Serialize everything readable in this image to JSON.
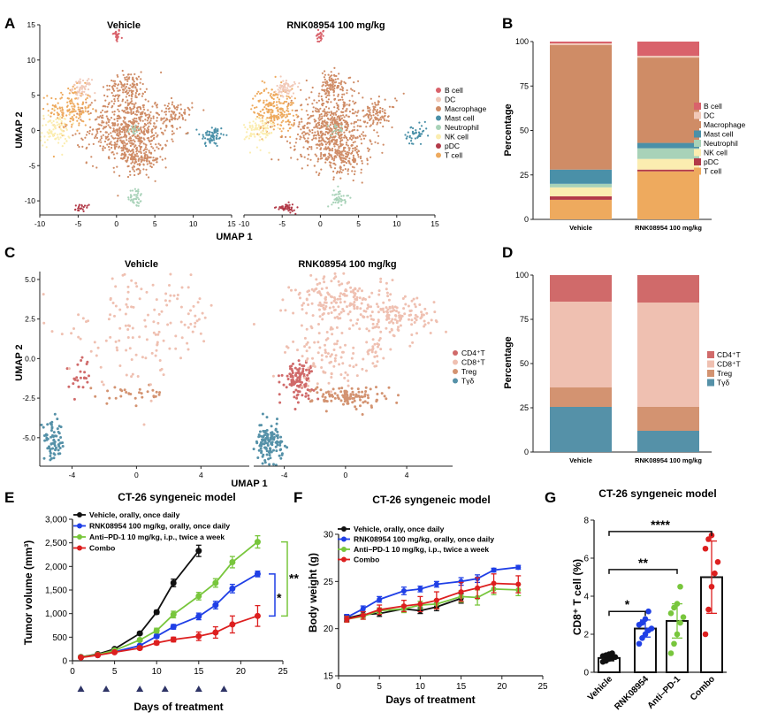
{
  "colors": {
    "b_cell": "#d9626b",
    "dc": "#f1c9b8",
    "macrophage": "#cf8c66",
    "mast": "#4a90a8",
    "neutrophil": "#a8d2b8",
    "nk": "#fbedb0",
    "pdc": "#b23a48",
    "tcell": "#eeaa5e",
    "cd4": "#d06a6a",
    "cd8": "#efc0b1",
    "treg": "#d39371",
    "tgd": "#5591a8",
    "black": "#111111",
    "blue": "#1f3fe6",
    "green": "#78c63c",
    "red": "#dd1f1f"
  },
  "panel_letters": {
    "A": "A",
    "B": "B",
    "C": "C",
    "D": "D",
    "E": "E",
    "F": "F",
    "G": "G"
  },
  "chart_data": [
    {
      "id": "A",
      "type": "scatter",
      "facets": [
        "Vehicle",
        "RNK08954 100 mg/kg"
      ],
      "xlabel": "UMAP 1",
      "ylabel": "UMAP 2",
      "xticks": [
        -10,
        -5,
        0,
        5,
        10,
        15
      ],
      "yticks": [
        15,
        10,
        5,
        0,
        -5,
        -10
      ],
      "xlim": [
        -10,
        15
      ],
      "ylim": [
        -12,
        15
      ],
      "legend": [
        "B cell",
        "DC",
        "Macrophage",
        "Mast cell",
        "Neutrophil",
        "NK cell",
        "pDC",
        "T cell"
      ],
      "legend_position": "right"
    },
    {
      "id": "B",
      "type": "bar",
      "stacked": true,
      "categories": [
        "Vehicle",
        "RNK08954 100 mg/kg"
      ],
      "ylabel": "Percentage",
      "xlabel": "",
      "ylim": [
        0,
        100
      ],
      "yticks": [
        0,
        25,
        50,
        75,
        100
      ],
      "series": [
        {
          "name": "T cell",
          "values": [
            11,
            27
          ]
        },
        {
          "name": "pDC",
          "values": [
            2,
            1
          ]
        },
        {
          "name": "NK cell",
          "values": [
            5,
            6
          ]
        },
        {
          "name": "Neutrophil",
          "values": [
            2,
            6
          ]
        },
        {
          "name": "Mast cell",
          "values": [
            8,
            3
          ]
        },
        {
          "name": "Macrophage",
          "values": [
            70,
            48
          ]
        },
        {
          "name": "DC",
          "values": [
            1,
            1
          ]
        },
        {
          "name": "B cell",
          "values": [
            1,
            8
          ]
        }
      ],
      "legend_position": "right"
    },
    {
      "id": "C",
      "type": "scatter",
      "facets": [
        "Vehicle",
        "RNK08954 100 mg/kg"
      ],
      "xlabel": "UMAP 1",
      "ylabel": "UMAP 2",
      "xticks": [
        -4,
        0,
        4
      ],
      "yticks": [
        5.0,
        2.5,
        0.0,
        -2.5,
        -5.0
      ],
      "xlim": [
        -6,
        7
      ],
      "ylim": [
        -6.8,
        5.5
      ],
      "legend": [
        "CD4⁺T",
        "CD8⁺T",
        "Treg",
        "Tγδ"
      ],
      "legend_position": "right"
    },
    {
      "id": "D",
      "type": "bar",
      "stacked": true,
      "categories": [
        "Vehicle",
        "RNK08954 100 mg/kg"
      ],
      "ylabel": "Percentage",
      "xlabel": "",
      "ylim": [
        0,
        100
      ],
      "yticks": [
        0,
        25,
        50,
        75,
        100
      ],
      "series": [
        {
          "name": "Tγδ",
          "values": [
            25.5,
            12
          ]
        },
        {
          "name": "Treg",
          "values": [
            11,
            13.5
          ]
        },
        {
          "name": "CD8⁺T",
          "values": [
            48.5,
            59
          ]
        },
        {
          "name": "CD4⁺T",
          "values": [
            15,
            15.5
          ]
        }
      ],
      "legend_position": "right"
    },
    {
      "id": "E",
      "type": "line",
      "title": "CT-26 syngeneic model",
      "xlabel": "Days of treatment",
      "ylabel": "Tumor volume (mm³)",
      "xlim": [
        0,
        25
      ],
      "ylim": [
        0,
        3000
      ],
      "xticks": [
        0,
        5,
        10,
        15,
        20,
        25
      ],
      "yticks": [
        0,
        500,
        1000,
        1500,
        2000,
        2500,
        3000
      ],
      "ytick_labels": [
        "0",
        "500",
        "1,000",
        "1,500",
        "2,000",
        "2,500",
        "3,000"
      ],
      "dosing_days": [
        1,
        4,
        8,
        11,
        15,
        18
      ],
      "series": [
        {
          "name": "Vehicle, orally, once daily",
          "x": [
            1,
            3,
            5,
            8,
            10,
            12,
            15
          ],
          "y": [
            80,
            140,
            250,
            580,
            1030,
            1650,
            2330
          ],
          "err": [
            10,
            15,
            20,
            30,
            40,
            80,
            120
          ]
        },
        {
          "name": "RNK08954 100 mg/kg, orally, once daily",
          "x": [
            1,
            3,
            5,
            8,
            10,
            12,
            15,
            17,
            19,
            22
          ],
          "y": [
            80,
            120,
            190,
            320,
            520,
            720,
            940,
            1180,
            1530,
            1840
          ],
          "err": [
            10,
            15,
            20,
            30,
            40,
            50,
            70,
            80,
            90,
            60
          ]
        },
        {
          "name": "Anti–PD-1 10 mg/kg, i.p., twice a week",
          "x": [
            1,
            3,
            5,
            8,
            10,
            12,
            15,
            17,
            19,
            22
          ],
          "y": [
            80,
            130,
            220,
            440,
            640,
            980,
            1370,
            1650,
            2090,
            2520
          ],
          "err": [
            10,
            15,
            20,
            30,
            50,
            70,
            80,
            90,
            120,
            130
          ]
        },
        {
          "name": "Combo",
          "x": [
            1,
            3,
            5,
            8,
            10,
            12,
            15,
            17,
            19,
            22
          ],
          "y": [
            70,
            120,
            180,
            270,
            380,
            450,
            520,
            600,
            770,
            950
          ],
          "err": [
            10,
            15,
            20,
            30,
            40,
            50,
            90,
            120,
            180,
            220
          ]
        }
      ],
      "annotations": [
        "**",
        "*"
      ]
    },
    {
      "id": "F",
      "type": "line",
      "title": "CT-26 syngeneic model",
      "xlabel": "Days of treatment",
      "ylabel": "Body weight (g)",
      "xlim": [
        0,
        25
      ],
      "ylim": [
        15,
        30
      ],
      "xticks": [
        0,
        5,
        10,
        15,
        20,
        25
      ],
      "yticks": [
        15,
        20,
        25,
        30
      ],
      "series": [
        {
          "name": "Vehicle, orally, once daily",
          "x": [
            1,
            3,
            5,
            8,
            10,
            12,
            15
          ],
          "y": [
            21.1,
            21.5,
            21.6,
            22.1,
            21.9,
            22.3,
            23.2
          ],
          "err": [
            0.3,
            0.3,
            0.3,
            0.3,
            0.3,
            0.4,
            0.5
          ]
        },
        {
          "name": "RNK08954 100 mg/kg, orally, once daily",
          "x": [
            1,
            3,
            5,
            8,
            10,
            12,
            15,
            17,
            19,
            22
          ],
          "y": [
            21.2,
            22.1,
            23.1,
            24.0,
            24.2,
            24.7,
            25.0,
            25.3,
            26.2,
            26.5
          ],
          "err": [
            0.3,
            0.3,
            0.3,
            0.4,
            0.3,
            0.3,
            0.4,
            0.4,
            0.2,
            0.2
          ]
        },
        {
          "name": "Anti–PD-1 10 mg/kg, i.p., twice a week",
          "x": [
            1,
            3,
            5,
            8,
            10,
            12,
            15,
            17,
            19,
            22
          ],
          "y": [
            21.0,
            21.3,
            21.9,
            22.1,
            22.5,
            22.6,
            23.4,
            23.3,
            24.2,
            24.1
          ],
          "err": [
            0.3,
            0.3,
            0.3,
            0.4,
            0.4,
            0.5,
            0.6,
            0.8,
            0.6,
            0.6
          ]
        },
        {
          "name": "Combo",
          "x": [
            1,
            3,
            5,
            8,
            10,
            12,
            15,
            17,
            19,
            22
          ],
          "y": [
            21.0,
            21.4,
            22.0,
            22.4,
            22.6,
            23.0,
            23.9,
            24.3,
            24.8,
            24.7
          ],
          "err": [
            0.3,
            0.4,
            0.5,
            0.6,
            0.8,
            0.9,
            1.0,
            1.1,
            1.0,
            0.9
          ]
        }
      ]
    },
    {
      "id": "G",
      "type": "bar",
      "title": "CT-26 syngeneic model",
      "ylabel": "CD8⁺ T cell (%)",
      "xlabel": "",
      "categories": [
        "Vehicle",
        "RNK08954",
        "Anti–PD-1",
        "Combo"
      ],
      "values": [
        0.75,
        2.3,
        2.7,
        5.0
      ],
      "err": [
        0.15,
        0.45,
        0.9,
        1.9
      ],
      "ylim": [
        0,
        8
      ],
      "yticks": [
        0,
        2,
        4,
        6,
        8
      ],
      "points": [
        [
          0.55,
          0.6,
          0.7,
          0.75,
          0.8,
          0.85,
          0.9,
          0.95,
          1.0
        ],
        [
          1.5,
          1.8,
          2.0,
          2.2,
          2.3,
          2.5,
          2.6,
          2.8,
          3.2
        ],
        [
          1.0,
          1.5,
          2.0,
          2.6,
          2.9,
          3.1,
          3.4,
          3.6,
          4.5
        ],
        [
          2.0,
          3.3,
          4.5,
          5.2,
          5.8,
          6.5,
          7.0,
          7.2
        ]
      ],
      "significance": [
        {
          "from": 0,
          "to": 1,
          "label": "*"
        },
        {
          "from": 0,
          "to": 2,
          "label": "**"
        },
        {
          "from": 0,
          "to": 3,
          "label": "****"
        }
      ]
    }
  ]
}
